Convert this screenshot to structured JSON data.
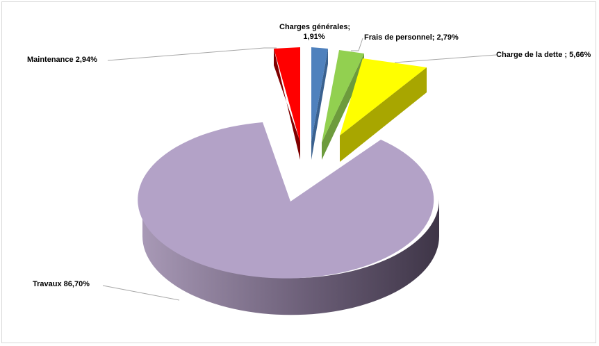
{
  "chart_data": {
    "type": "pie",
    "title": "",
    "slices": [
      {
        "name": "Travaux",
        "value": 86.7,
        "label": "Travaux",
        "value_label": "86,70%",
        "color": "#b3a2c7"
      },
      {
        "name": "Maintenance",
        "value": 2.94,
        "label": "Maintenance",
        "value_label": "2,94%",
        "color": "#ff0000"
      },
      {
        "name": "Charges générales",
        "value": 1.91,
        "label": "Charges générales;",
        "value_label": "1,91%",
        "color": "#4f81bd"
      },
      {
        "name": "Frais de personnel",
        "value": 2.79,
        "label": "Frais de personnel;",
        "value_label": "2,79%",
        "color": "#92d050"
      },
      {
        "name": "Charge de la dette",
        "value": 5.66,
        "label": "Charge de la dette ;",
        "value_label": "5,66%",
        "color": "#ffff00"
      }
    ],
    "legend": "none",
    "style": "3d-exploded"
  }
}
